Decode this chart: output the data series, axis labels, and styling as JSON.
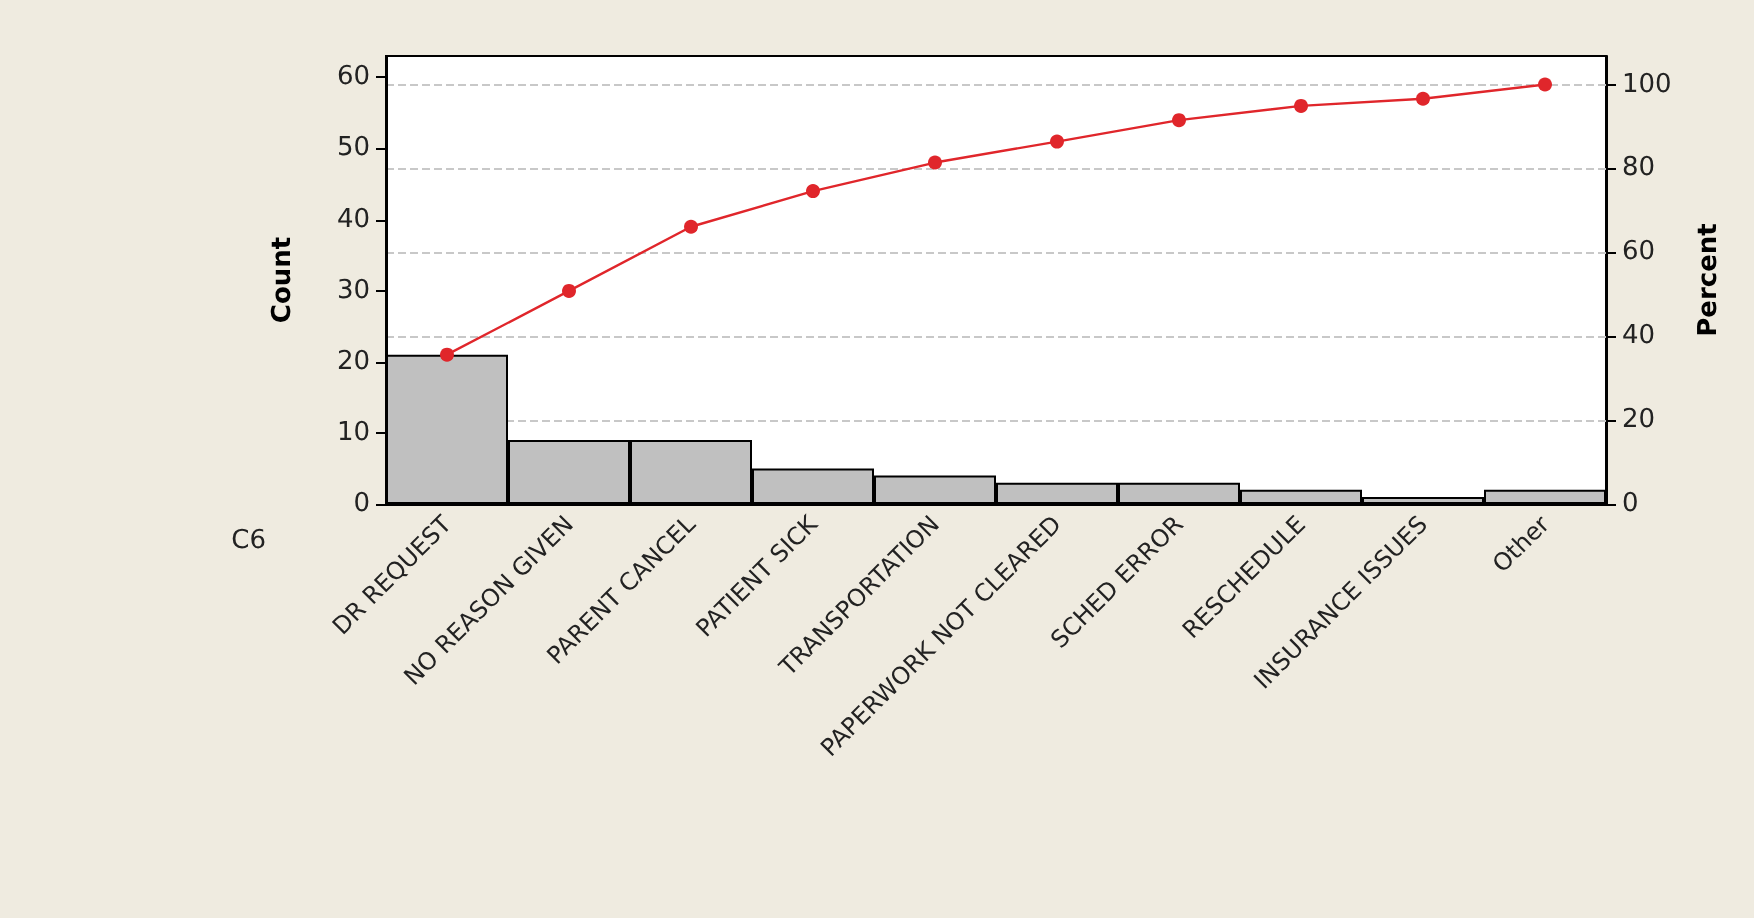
{
  "chart_data": {
    "type": "bar",
    "xlabel": "C6",
    "ylabel": "Count",
    "y2label": "Percent",
    "categories": [
      "DR REQUEST",
      "NO REASON GIVEN",
      "PARENT CANCEL",
      "PATIENT SICK",
      "TRANSPORTATION",
      "PAPERWORK NOT CLEARED",
      "SCHED ERROR",
      "RESCHEDULE",
      "INSURANCE ISSUES",
      "Other"
    ],
    "series": [
      {
        "color": "#c0c0c0",
        "values": [
          21,
          9,
          9,
          5,
          4,
          3,
          3,
          2,
          1,
          2
        ]
      },
      {
        "type": "line",
        "axis": "y2",
        "color": "#e0262b",
        "marker": "circle",
        "line_style": "solid",
        "values": [
          35.6,
          50.8,
          66.1,
          74.6,
          81.4,
          86.4,
          91.5,
          94.9,
          96.6,
          100
        ]
      }
    ],
    "ylim": [
      0,
      63
    ],
    "yticks": [
      0,
      10,
      20,
      30,
      40,
      50,
      60
    ],
    "y2lim": [
      0,
      106.8
    ],
    "y2ticks": [
      0,
      20,
      40,
      60,
      80,
      100
    ],
    "grid": true
  }
}
